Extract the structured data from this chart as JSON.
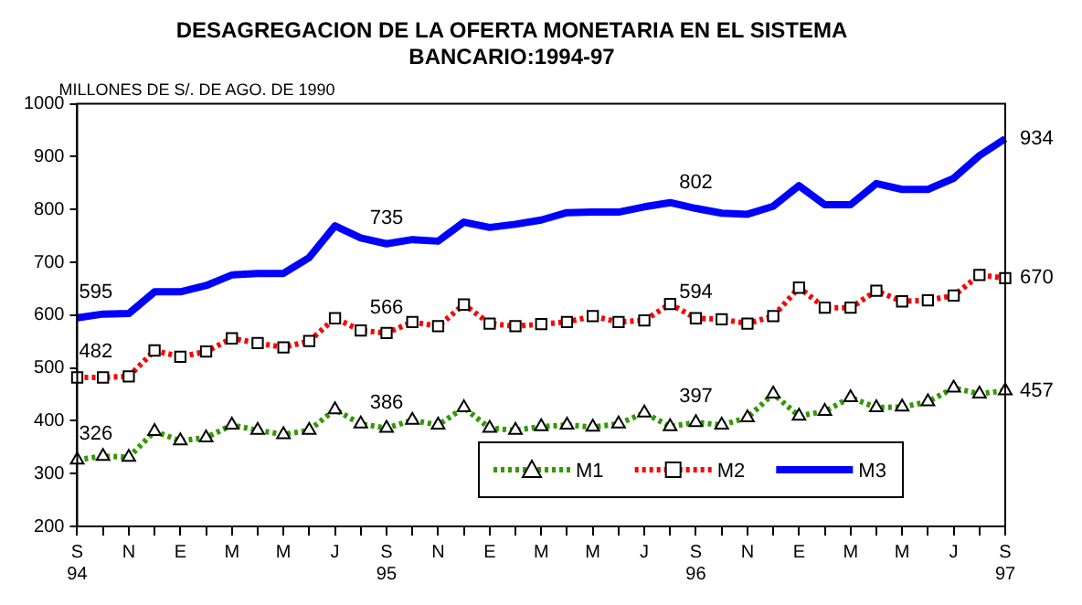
{
  "chart_data": {
    "type": "line",
    "title": "DESAGREGACION DE LA OFERTA MONETARIA EN EL SISTEMA\nBANCARIO:1994-97",
    "ylabel": "MILLONES DE S/. DE AGO. DE 1990",
    "categories": [
      "S\n94",
      null,
      "N",
      null,
      "E",
      null,
      "M",
      null,
      "M",
      null,
      "J",
      null,
      "S\n95",
      null,
      "N",
      null,
      "E",
      null,
      "M",
      null,
      "M",
      null,
      "J",
      null,
      "S\n96",
      null,
      "N",
      null,
      "E",
      null,
      "M",
      null,
      "M",
      null,
      "J",
      null,
      "S\n97"
    ],
    "series": [
      {
        "name": "M1",
        "color": "#339900",
        "marker": "triangle",
        "line_style": "dotted",
        "values": [
          326,
          333,
          331,
          380,
          362,
          368,
          392,
          382,
          374,
          382,
          421,
          394,
          386,
          401,
          392,
          425,
          386,
          382,
          389,
          392,
          388,
          394,
          415,
          389,
          397,
          392,
          406,
          451,
          409,
          418,
          444,
          425,
          426,
          436,
          462,
          451,
          457
        ],
        "value_labels": [
          "326",
          null,
          null,
          null,
          null,
          null,
          null,
          null,
          null,
          null,
          null,
          null,
          "386",
          null,
          null,
          null,
          null,
          null,
          null,
          null,
          null,
          null,
          null,
          null,
          "397",
          null,
          null,
          null,
          null,
          null,
          null,
          null,
          null,
          null,
          null,
          null,
          "457"
        ]
      },
      {
        "name": "M2",
        "color": "#ff0000",
        "marker": "square",
        "line_style": "dotted",
        "values": [
          482,
          482,
          484,
          533,
          521,
          531,
          556,
          547,
          539,
          551,
          594,
          571,
          566,
          587,
          579,
          620,
          584,
          579,
          583,
          587,
          598,
          587,
          590,
          621,
          594,
          592,
          584,
          598,
          652,
          614,
          614,
          646,
          626,
          628,
          637,
          676,
          670
        ],
        "value_labels": [
          "482",
          null,
          null,
          null,
          null,
          null,
          null,
          null,
          null,
          null,
          null,
          null,
          "566",
          null,
          null,
          null,
          null,
          null,
          null,
          null,
          null,
          null,
          null,
          null,
          "594",
          null,
          null,
          null,
          null,
          null,
          null,
          null,
          null,
          null,
          null,
          null,
          "670"
        ]
      },
      {
        "name": "M3",
        "color": "#0000ff",
        "marker": "none",
        "line_style": "solid",
        "values": [
          595,
          602,
          603,
          644,
          644,
          656,
          676,
          679,
          679,
          709,
          769,
          746,
          735,
          743,
          740,
          776,
          766,
          772,
          780,
          794,
          795,
          795,
          805,
          813,
          802,
          793,
          791,
          806,
          845,
          809,
          809,
          849,
          838,
          838,
          859,
          902,
          934
        ],
        "value_labels": [
          "595",
          null,
          null,
          null,
          null,
          null,
          null,
          null,
          null,
          null,
          null,
          null,
          "735",
          null,
          null,
          null,
          null,
          null,
          null,
          null,
          null,
          null,
          null,
          null,
          "802",
          null,
          null,
          null,
          null,
          null,
          null,
          null,
          null,
          null,
          null,
          null,
          "934"
        ]
      }
    ],
    "ylim": [
      200,
      1000
    ],
    "yticks": [
      200,
      300,
      400,
      500,
      600,
      700,
      800,
      900,
      1000
    ],
    "grid": false,
    "legend": "bottom right"
  }
}
